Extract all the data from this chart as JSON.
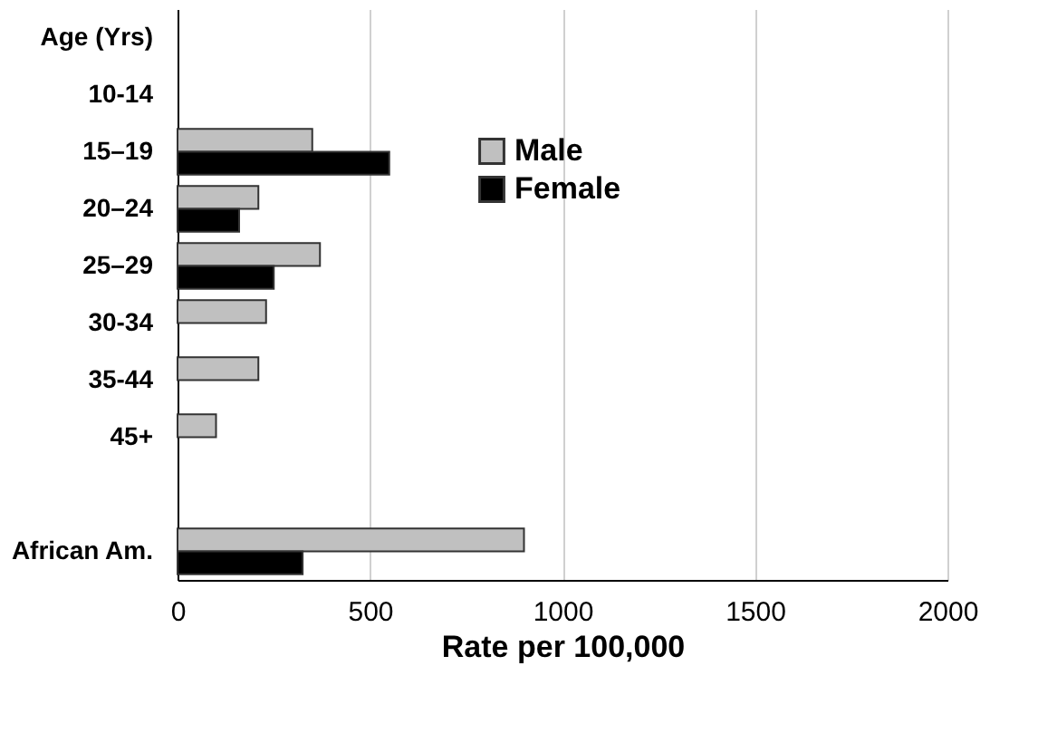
{
  "chart_data": {
    "type": "bar",
    "orientation": "horizontal",
    "categories": [
      "Age (Yrs)",
      "10-14",
      "15–19",
      "20–24",
      "25–29",
      "30-34",
      "35-44",
      "45+",
      null,
      "African Am."
    ],
    "series": [
      {
        "name": "Male",
        "color": "#c0c0c0",
        "values": [
          null,
          null,
          350,
          210,
          370,
          230,
          210,
          100,
          null,
          900
        ]
      },
      {
        "name": "Female",
        "color": "#000000",
        "values": [
          null,
          null,
          550,
          160,
          250,
          null,
          null,
          null,
          null,
          325
        ]
      }
    ],
    "xlabel": "Rate per 100,000",
    "xlim": [
      0,
      2000
    ],
    "xticks": [
      0,
      500,
      1000,
      1500,
      2000
    ],
    "grid": "x",
    "legend": "top"
  }
}
